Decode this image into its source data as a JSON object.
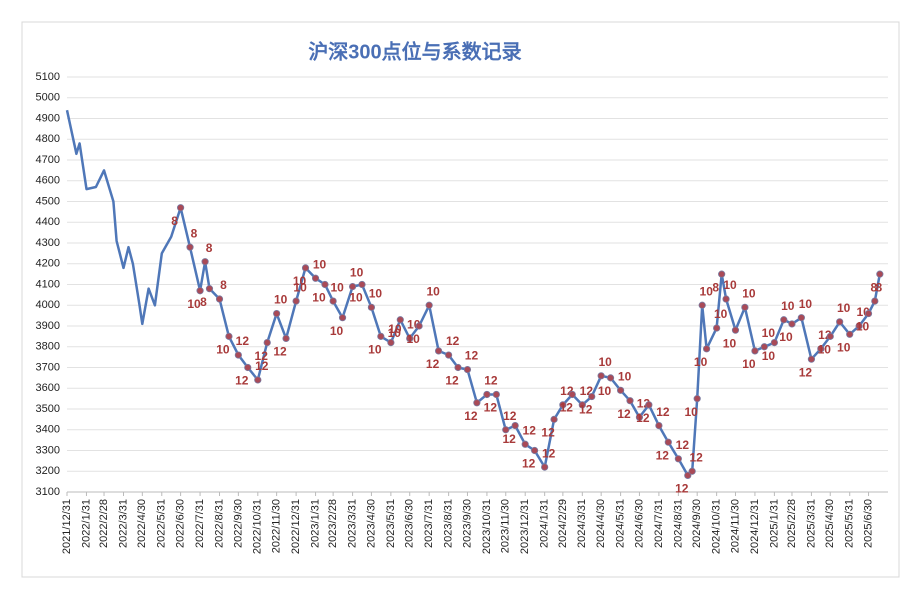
{
  "chart_data": {
    "type": "line",
    "title": "沪深300点位与系数记录",
    "x": [
      "2021/12/31",
      "2022/1/15",
      "2022/1/20",
      "2022/1/31",
      "2022/2/15",
      "2022/2/28",
      "2022/3/15",
      "2022/3/20",
      "2022/3/31",
      "2022/4/8",
      "2022/4/15",
      "2022/4/25",
      "2022/4/30",
      "2022/5/10",
      "2022/5/20",
      "2022/5/31",
      "2022/6/15",
      "2022/6/30",
      "2022/7/15",
      "2022/7/31",
      "2022/8/8",
      "2022/8/15",
      "2022/8/31",
      "2022/9/15",
      "2022/9/30",
      "2022/10/15",
      "2022/10/31",
      "2022/11/15",
      "2022/11/30",
      "2022/12/15",
      "2022/12/31",
      "2023/1/15",
      "2023/1/31",
      "2023/2/15",
      "2023/2/28",
      "2023/3/15",
      "2023/3/31",
      "2023/4/15",
      "2023/4/30",
      "2023/5/15",
      "2023/5/31",
      "2023/6/15",
      "2023/6/30",
      "2023/7/15",
      "2023/7/31",
      "2023/8/15",
      "2023/8/31",
      "2023/9/15",
      "2023/9/30",
      "2023/10/15",
      "2023/10/31",
      "2023/11/15",
      "2023/11/30",
      "2023/12/15",
      "2023/12/31",
      "2024/1/15",
      "2024/1/31",
      "2024/2/15",
      "2024/2/29",
      "2024/3/15",
      "2024/3/31",
      "2024/4/15",
      "2024/4/30",
      "2024/5/15",
      "2024/5/31",
      "2024/6/15",
      "2024/6/30",
      "2024/7/15",
      "2024/7/31",
      "2024/8/15",
      "2024/8/31",
      "2024/9/15",
      "2024/9/22",
      "2024/9/30",
      "2024/10/8",
      "2024/10/15",
      "2024/10/31",
      "2024/11/8",
      "2024/11/15",
      "2024/11/30",
      "2024/12/15",
      "2024/12/31",
      "2025/1/15",
      "2025/1/31",
      "2025/2/15",
      "2025/2/28",
      "2025/3/15",
      "2025/3/31",
      "2025/4/15",
      "2025/4/30",
      "2025/5/15",
      "2025/5/31",
      "2025/6/15",
      "2025/6/30",
      "2025/7/10",
      "2025/7/18"
    ],
    "series": [
      {
        "name": "沪深300",
        "color": "#4f77b8",
        "values": [
          4940,
          4730,
          4780,
          4560,
          4570,
          4650,
          4500,
          4310,
          4180,
          4280,
          4200,
          4010,
          3910,
          4080,
          4000,
          4250,
          4330,
          4470,
          4280,
          4070,
          4210,
          4080,
          4030,
          3850,
          3760,
          3700,
          3640,
          3820,
          3960,
          3840,
          4020,
          4180,
          4130,
          4100,
          4020,
          3940,
          4090,
          4100,
          3990,
          3850,
          3820,
          3930,
          3840,
          3900,
          4000,
          3780,
          3760,
          3700,
          3690,
          3530,
          3570,
          3570,
          3400,
          3420,
          3330,
          3300,
          3220,
          3450,
          3520,
          3570,
          3520,
          3560,
          3660,
          3650,
          3590,
          3540,
          3460,
          3520,
          3420,
          3340,
          3260,
          3180,
          3200,
          3550,
          4000,
          3790,
          3890,
          4150,
          4030,
          3880,
          3990,
          3780,
          3800,
          3820,
          3930,
          3910,
          3940,
          3740,
          3790,
          3850,
          3920,
          3860,
          3900,
          3960,
          4020,
          4150
        ],
        "coefficients": [
          null,
          null,
          null,
          null,
          null,
          null,
          null,
          null,
          null,
          null,
          null,
          null,
          null,
          null,
          null,
          null,
          null,
          "8",
          "8",
          "10",
          "8",
          "8",
          "8",
          "10",
          "12",
          "12",
          "12",
          "12",
          "10",
          "12",
          "10",
          "10",
          "10",
          "10",
          "10",
          "10",
          "10",
          "10",
          "10",
          "10",
          "10",
          "10",
          "10",
          "10",
          "10",
          "12",
          "12",
          "12",
          "12",
          "12",
          "12",
          "12",
          "12",
          "12",
          "12",
          "12",
          "12",
          "12",
          "12",
          "12",
          "12",
          "12",
          "10",
          "10",
          "10",
          "12",
          "12",
          "12",
          "12",
          "12",
          "12",
          "12",
          "12",
          "10",
          "10",
          "10",
          "10",
          "8",
          "10",
          "10",
          "10",
          "10",
          "10",
          "10",
          "10",
          "10",
          "10",
          "12",
          "12",
          "10",
          "10",
          "10",
          "10",
          "10",
          "8",
          "8"
        ]
      }
    ],
    "xlim": [
      "2021/12/31",
      "2025/7/31"
    ],
    "xticks": [
      "2021/12/31",
      "2022/1/31",
      "2022/2/28",
      "2022/3/31",
      "2022/4/30",
      "2022/5/31",
      "2022/6/30",
      "2022/7/31",
      "2022/8/31",
      "2022/9/30",
      "2022/10/31",
      "2022/11/30",
      "2022/12/31",
      "2023/1/31",
      "2023/2/28",
      "2023/3/31",
      "2023/4/30",
      "2023/5/31",
      "2023/6/30",
      "2023/7/31",
      "2023/8/31",
      "2023/9/30",
      "2023/10/31",
      "2023/11/30",
      "2023/12/31",
      "2024/1/31",
      "2024/2/29",
      "2024/3/31",
      "2024/4/30",
      "2024/5/31",
      "2024/6/30",
      "2024/7/31",
      "2024/8/31",
      "2024/9/30",
      "2024/10/31",
      "2024/11/30",
      "2024/12/31",
      "2025/1/31",
      "2025/2/28",
      "2025/3/31",
      "2025/4/30",
      "2025/5/31",
      "2025/6/30"
    ],
    "ylim": [
      3100,
      5100
    ],
    "yticks": [
      3100,
      3200,
      3300,
      3400,
      3500,
      3600,
      3700,
      3800,
      3900,
      4000,
      4100,
      4200,
      4300,
      4400,
      4500,
      4600,
      4700,
      4800,
      4900,
      5000,
      5100
    ],
    "grid": true,
    "marker_color": "#a94a57",
    "label_color": "#a83a3a"
  }
}
